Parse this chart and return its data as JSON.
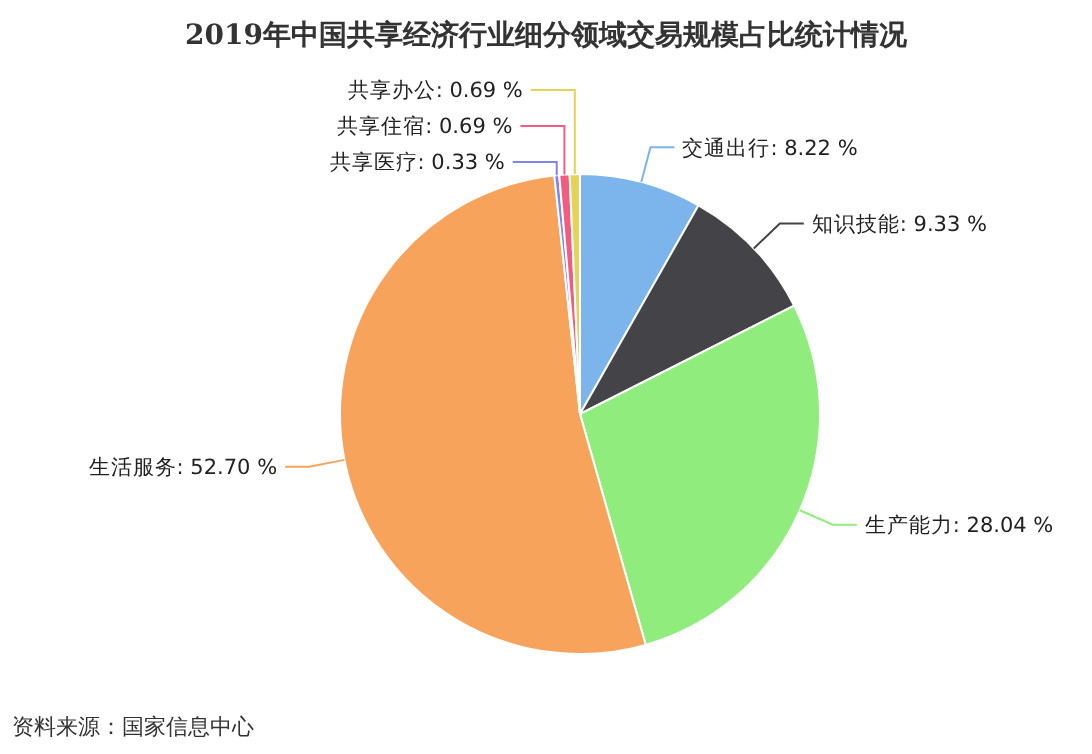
{
  "chart_data": {
    "type": "pie",
    "title": "2019年中国共享经济行业细分领域交易规模占比统计情况",
    "categories": [
      "交通出行",
      "知识技能",
      "生产能力",
      "生活服务",
      "共享医疗",
      "共享住宿",
      "共享办公"
    ],
    "values": [
      8.22,
      9.33,
      28.04,
      52.7,
      0.33,
      0.69,
      0.69
    ],
    "colors": [
      "#7cb5ec",
      "#434348",
      "#90ed7d",
      "#f7a35c",
      "#8085e9",
      "#f15c80",
      "#e4d354"
    ],
    "value_labels": [
      "8.22 %",
      "9.33 %",
      "28.04 %",
      "52.70 %",
      "0.33 %",
      "0.69 %",
      "0.69 %"
    ],
    "annotations": [
      "资料来源：国家信息中心"
    ]
  }
}
